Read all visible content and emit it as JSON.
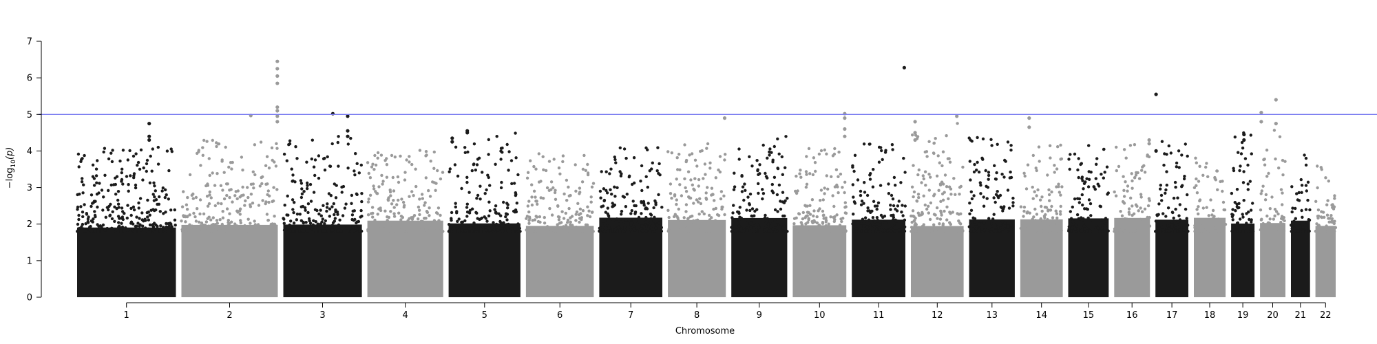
{
  "chart_data": {
    "type": "scatter",
    "title": "",
    "xlabel": "Chromosome",
    "ylabel_prefix": "−log",
    "ylabel_sub": "10",
    "ylabel_suffix": "(p)",
    "ylim": [
      0,
      7
    ],
    "yticks": [
      "0",
      "1",
      "2",
      "3",
      "4",
      "5",
      "6",
      "7"
    ],
    "grid": false,
    "legend": "none",
    "threshold": {
      "value": 5,
      "color": "#7b7df0"
    },
    "colors": {
      "odd": "#1b1b1b",
      "even": "#9a9a9a"
    },
    "chromosomes": [
      {
        "label": "1",
        "size": 249,
        "peak": 4.1
      },
      {
        "label": "2",
        "size": 243,
        "peak": 4.3
      },
      {
        "label": "3",
        "size": 198,
        "peak": 4.4
      },
      {
        "label": "4",
        "size": 191,
        "peak": 4.1
      },
      {
        "label": "5",
        "size": 181,
        "peak": 4.5
      },
      {
        "label": "6",
        "size": 171,
        "peak": 4.0
      },
      {
        "label": "7",
        "size": 159,
        "peak": 4.1
      },
      {
        "label": "8",
        "size": 146,
        "peak": 4.3
      },
      {
        "label": "9",
        "size": 141,
        "peak": 4.4
      },
      {
        "label": "10",
        "size": 135,
        "peak": 4.1
      },
      {
        "label": "11",
        "size": 135,
        "peak": 4.2
      },
      {
        "label": "12",
        "size": 133,
        "peak": 4.8
      },
      {
        "label": "13",
        "size": 115,
        "peak": 4.4
      },
      {
        "label": "14",
        "size": 107,
        "peak": 4.2
      },
      {
        "label": "15",
        "size": 102,
        "peak": 4.2
      },
      {
        "label": "16",
        "size": 90,
        "peak": 4.2
      },
      {
        "label": "17",
        "size": 83,
        "peak": 4.3
      },
      {
        "label": "18",
        "size": 80,
        "peak": 4.0
      },
      {
        "label": "19",
        "size": 59,
        "peak": 4.5
      },
      {
        "label": "20",
        "size": 64,
        "peak": 4.6
      },
      {
        "label": "21",
        "size": 48,
        "peak": 3.9
      },
      {
        "label": "22",
        "size": 51,
        "peak": 3.6
      }
    ],
    "top_hits": [
      {
        "chr": "1",
        "pos": 0.73,
        "values": [
          4.75,
          4.4,
          4.3
        ]
      },
      {
        "chr": "2",
        "pos": 0.72,
        "values": [
          4.97
        ]
      },
      {
        "chr": "2",
        "pos": 0.995,
        "values": [
          6.45,
          6.25,
          6.05,
          5.85,
          5.2,
          5.1,
          4.95,
          4.8
        ]
      },
      {
        "chr": "3",
        "pos": 0.63,
        "values": [
          5.02
        ]
      },
      {
        "chr": "3",
        "pos": 0.82,
        "values": [
          4.95,
          4.55,
          4.4
        ]
      },
      {
        "chr": "5",
        "pos": 0.05,
        "values": [
          4.35,
          4.25
        ]
      },
      {
        "chr": "5",
        "pos": 0.26,
        "values": [
          4.55,
          4.5
        ]
      },
      {
        "chr": "8",
        "pos": 0.98,
        "values": [
          4.9
        ]
      },
      {
        "chr": "10",
        "pos": 0.97,
        "values": [
          5.02,
          4.9,
          4.6,
          4.4
        ]
      },
      {
        "chr": "11",
        "pos": 0.98,
        "values": [
          6.28
        ]
      },
      {
        "chr": "12",
        "pos": 0.08,
        "values": [
          4.8,
          4.5,
          4.3
        ]
      },
      {
        "chr": "12",
        "pos": 0.87,
        "values": [
          4.95
        ]
      },
      {
        "chr": "14",
        "pos": 0.21,
        "values": [
          4.9,
          4.65
        ]
      },
      {
        "chr": "16",
        "pos": 0.98,
        "values": [
          4.3,
          4.2
        ]
      },
      {
        "chr": "17",
        "pos": 0.02,
        "values": [
          5.55,
          4.0
        ]
      },
      {
        "chr": "19",
        "pos": 0.55,
        "values": [
          4.45,
          4.3
        ]
      },
      {
        "chr": "20",
        "pos": 0.05,
        "values": [
          5.05,
          4.8
        ]
      },
      {
        "chr": "20",
        "pos": 0.63,
        "values": [
          5.4,
          4.75
        ]
      }
    ]
  }
}
